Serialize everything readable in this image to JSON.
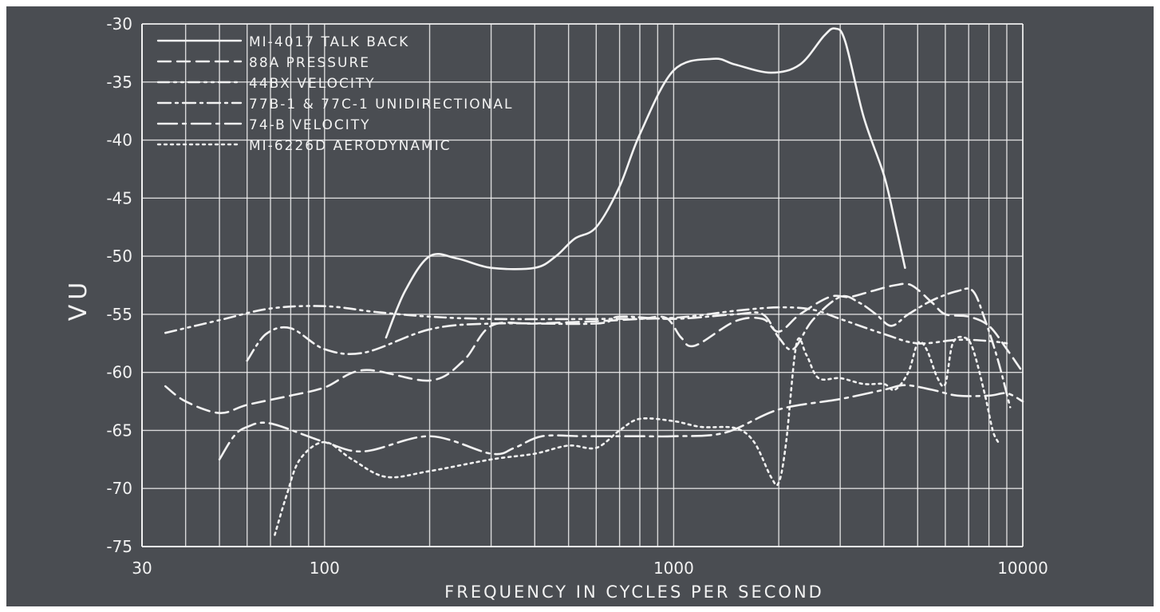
{
  "chart_data": {
    "type": "line",
    "title": "",
    "xlabel": "FREQUENCY IN CYCLES PER SECOND",
    "ylabel": "VU",
    "x_scale": "log",
    "xlim": [
      30,
      10000
    ],
    "ylim": [
      -75,
      -30
    ],
    "x_ticks": [
      {
        "value": 30,
        "label": "30"
      },
      {
        "value": 100,
        "label": "100"
      },
      {
        "value": 1000,
        "label": "1000"
      },
      {
        "value": 10000,
        "label": "10000"
      }
    ],
    "y_ticks": [
      {
        "value": -30,
        "label": "-30"
      },
      {
        "value": -35,
        "label": "-35"
      },
      {
        "value": -40,
        "label": "-40"
      },
      {
        "value": -45,
        "label": "-45"
      },
      {
        "value": -50,
        "label": "-50"
      },
      {
        "value": -55,
        "label": "-55"
      },
      {
        "value": -60,
        "label": "-60"
      },
      {
        "value": -65,
        "label": "-65"
      },
      {
        "value": -70,
        "label": "-70"
      },
      {
        "value": -75,
        "label": "-75"
      }
    ],
    "grid": true,
    "legend_position": "top-left",
    "colors": {
      "background": "#4a4d52",
      "foreground": "#f2f2f2"
    },
    "series": [
      {
        "name": "MI-4017  TALK BACK",
        "style": "solid",
        "points": [
          [
            150,
            -57
          ],
          [
            170,
            -53
          ],
          [
            200,
            -50
          ],
          [
            240,
            -50.2
          ],
          [
            300,
            -51
          ],
          [
            400,
            -51
          ],
          [
            460,
            -50
          ],
          [
            520,
            -48.5
          ],
          [
            600,
            -47.5
          ],
          [
            700,
            -44
          ],
          [
            800,
            -39.5
          ],
          [
            1000,
            -34
          ],
          [
            1300,
            -33
          ],
          [
            1500,
            -33.5
          ],
          [
            1900,
            -34.2
          ],
          [
            2300,
            -33.5
          ],
          [
            2700,
            -31
          ],
          [
            2900,
            -30.4
          ],
          [
            3100,
            -31.5
          ],
          [
            3500,
            -38
          ],
          [
            4000,
            -43
          ],
          [
            4300,
            -47
          ],
          [
            4600,
            -51
          ]
        ]
      },
      {
        "name": "88A  PRESSURE",
        "style": "dashed",
        "points": [
          [
            35,
            -61.2
          ],
          [
            40,
            -62.5
          ],
          [
            50,
            -63.5
          ],
          [
            60,
            -62.8
          ],
          [
            80,
            -62
          ],
          [
            100,
            -61.3
          ],
          [
            130,
            -59.8
          ],
          [
            200,
            -60.7
          ],
          [
            250,
            -59
          ],
          [
            300,
            -56
          ],
          [
            400,
            -55.8
          ],
          [
            600,
            -55.6
          ],
          [
            800,
            -55.4
          ],
          [
            950,
            -55.3
          ],
          [
            1050,
            -57
          ],
          [
            1150,
            -57.7
          ],
          [
            1500,
            -55.6
          ],
          [
            1800,
            -55.4
          ],
          [
            2000,
            -56.5
          ],
          [
            2300,
            -55
          ],
          [
            2800,
            -53.5
          ],
          [
            3200,
            -53.5
          ],
          [
            3700,
            -53
          ],
          [
            4300,
            -52.5
          ],
          [
            4800,
            -52.5
          ],
          [
            5500,
            -54
          ],
          [
            6000,
            -55
          ],
          [
            7000,
            -55.2
          ],
          [
            8000,
            -56
          ],
          [
            9000,
            -58
          ],
          [
            10000,
            -60
          ]
        ]
      },
      {
        "name": "44BX  VELOCITY",
        "style": "dash-dot-dot",
        "points": [
          [
            35,
            -56.6
          ],
          [
            50,
            -55.5
          ],
          [
            70,
            -54.5
          ],
          [
            100,
            -54.3
          ],
          [
            140,
            -54.8
          ],
          [
            200,
            -55.2
          ],
          [
            300,
            -55.4
          ],
          [
            600,
            -55.4
          ],
          [
            1000,
            -55.3
          ],
          [
            1500,
            -54.7
          ],
          [
            2000,
            -54.4
          ],
          [
            2500,
            -54.6
          ],
          [
            3000,
            -55.4
          ],
          [
            4000,
            -56.7
          ],
          [
            5000,
            -57.5
          ],
          [
            6500,
            -57.2
          ],
          [
            8000,
            -57.3
          ],
          [
            9000,
            -57.5
          ]
        ]
      },
      {
        "name": "77B-1  &  77C-1  UNIDIRECTIONAL",
        "style": "dash-dot",
        "points": [
          [
            60,
            -59
          ],
          [
            68,
            -56.7
          ],
          [
            80,
            -56.2
          ],
          [
            100,
            -58
          ],
          [
            130,
            -58.3
          ],
          [
            200,
            -56.3
          ],
          [
            300,
            -55.8
          ],
          [
            600,
            -55.8
          ],
          [
            700,
            -55.2
          ],
          [
            1000,
            -55.4
          ],
          [
            1500,
            -55
          ],
          [
            1800,
            -55
          ],
          [
            2000,
            -57
          ],
          [
            2200,
            -58
          ],
          [
            2500,
            -55.5
          ],
          [
            3000,
            -53.5
          ],
          [
            3400,
            -54
          ],
          [
            3800,
            -55
          ],
          [
            4200,
            -56
          ],
          [
            4700,
            -55
          ],
          [
            5500,
            -53.8
          ],
          [
            6500,
            -53
          ],
          [
            7200,
            -53
          ],
          [
            7800,
            -55.5
          ],
          [
            8500,
            -59
          ],
          [
            9200,
            -63
          ]
        ]
      },
      {
        "name": "74-B  VELOCITY",
        "style": "long-dash-dot",
        "points": [
          [
            50,
            -67.5
          ],
          [
            55,
            -65.5
          ],
          [
            60,
            -64.7
          ],
          [
            70,
            -64.4
          ],
          [
            100,
            -66
          ],
          [
            130,
            -66.8
          ],
          [
            200,
            -65.5
          ],
          [
            300,
            -67
          ],
          [
            350,
            -66.5
          ],
          [
            420,
            -65.5
          ],
          [
            550,
            -65.5
          ],
          [
            800,
            -65.5
          ],
          [
            1000,
            -65.5
          ],
          [
            1400,
            -65.2
          ],
          [
            2000,
            -63.2
          ],
          [
            3000,
            -62.3
          ],
          [
            4000,
            -61.5
          ],
          [
            4600,
            -61.1
          ],
          [
            5500,
            -61.5
          ],
          [
            6500,
            -62
          ],
          [
            8000,
            -62
          ],
          [
            9000,
            -61.8
          ],
          [
            10000,
            -62.5
          ]
        ]
      },
      {
        "name": "MI-6226D  AERODYNAMIC",
        "style": "dotted",
        "points": [
          [
            72,
            -74
          ],
          [
            78,
            -70.5
          ],
          [
            85,
            -67.5
          ],
          [
            100,
            -66
          ],
          [
            120,
            -67.5
          ],
          [
            150,
            -69
          ],
          [
            200,
            -68.5
          ],
          [
            300,
            -67.5
          ],
          [
            400,
            -67
          ],
          [
            500,
            -66.3
          ],
          [
            600,
            -66.5
          ],
          [
            700,
            -65
          ],
          [
            800,
            -64
          ],
          [
            1000,
            -64.2
          ],
          [
            1200,
            -64.7
          ],
          [
            1500,
            -64.8
          ],
          [
            1700,
            -66
          ],
          [
            1900,
            -69
          ],
          [
            2000,
            -69.5
          ],
          [
            2100,
            -66
          ],
          [
            2250,
            -57.5
          ],
          [
            2400,
            -58.5
          ],
          [
            2600,
            -60.5
          ],
          [
            3000,
            -60.5
          ],
          [
            3500,
            -61
          ],
          [
            4000,
            -61
          ],
          [
            4300,
            -61.5
          ],
          [
            4700,
            -60
          ],
          [
            5000,
            -57.5
          ],
          [
            5300,
            -58
          ],
          [
            5700,
            -60.5
          ],
          [
            6000,
            -61
          ],
          [
            6300,
            -57.5
          ],
          [
            6800,
            -57
          ],
          [
            7200,
            -58
          ],
          [
            7800,
            -62
          ],
          [
            8200,
            -65
          ],
          [
            8500,
            -66
          ]
        ]
      }
    ]
  }
}
